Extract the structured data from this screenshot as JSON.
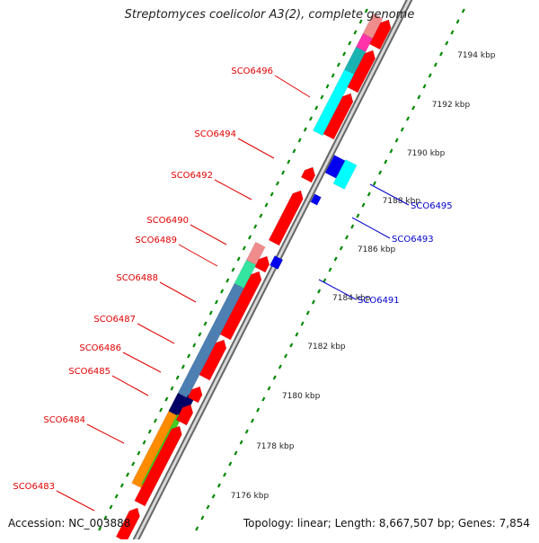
{
  "title": "Streptomyces coelicolor A3(2), complete genome",
  "accession_text": "Accession: NC_003888",
  "topology_text": "Topology: linear; Length: 8,667,507 bp; Genes: 7,854",
  "colors": {
    "red": "#ff0000",
    "cyan": "#00ffff",
    "teal": "#1ab3b3",
    "magenta": "#ff33aa",
    "pink": "#f08c8c",
    "green_teal": "#33e5a0",
    "steel_blue": "#4d7fb3",
    "blue": "#0000ee",
    "orange": "#ff8c00",
    "green": "#44cc22",
    "navy": "#000066",
    "silver": "#cccccc",
    "label_red": "#e00000",
    "label_blue": "#0000cc",
    "backbone": "#888888",
    "tick_green": "#008800"
  },
  "ticks": [
    {
      "label": "7194 kbp"
    },
    {
      "label": "7192 kbp"
    },
    {
      "label": "7190 kbp"
    },
    {
      "label": "7188 kbp"
    },
    {
      "label": "7186 kbp"
    },
    {
      "label": "7184 kbp"
    },
    {
      "label": "7182 kbp"
    },
    {
      "label": "7180 kbp"
    },
    {
      "label": "7178 kbp"
    },
    {
      "label": "7176 kbp"
    }
  ],
  "left_labels": [
    {
      "text": "SCO6496"
    },
    {
      "text": "SCO6494"
    },
    {
      "text": "SCO6492"
    },
    {
      "text": "SCO6490"
    },
    {
      "text": "SCO6489"
    },
    {
      "text": "SCO6488"
    },
    {
      "text": "SCO6487"
    },
    {
      "text": "SCO6486"
    },
    {
      "text": "SCO6485"
    },
    {
      "text": "SCO6484"
    },
    {
      "text": "SCO6483"
    }
  ],
  "right_labels": [
    {
      "text": "SCO6495"
    },
    {
      "text": "SCO6493"
    },
    {
      "text": "SCO6491"
    }
  ]
}
